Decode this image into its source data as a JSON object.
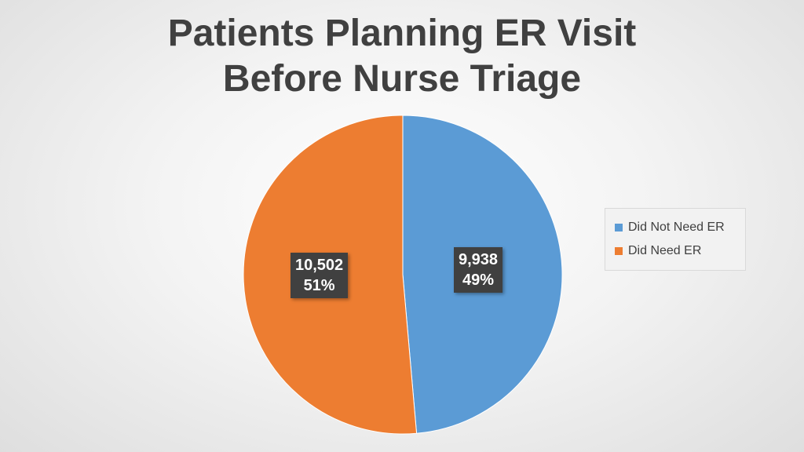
{
  "chart_data": {
    "type": "pie",
    "title_lines": [
      "Patients Planning ER Visit",
      "Before Nurse Triage"
    ],
    "slices": [
      {
        "name": "Did Not Need ER",
        "value": 9938,
        "value_label": "9,938",
        "percent_label": "49%",
        "color": "#5B9BD5"
      },
      {
        "name": "Did Need ER",
        "value": 10502,
        "value_label": "10,502",
        "percent_label": "51%",
        "color": "#ED7D31"
      }
    ],
    "legend_placement": "right"
  }
}
